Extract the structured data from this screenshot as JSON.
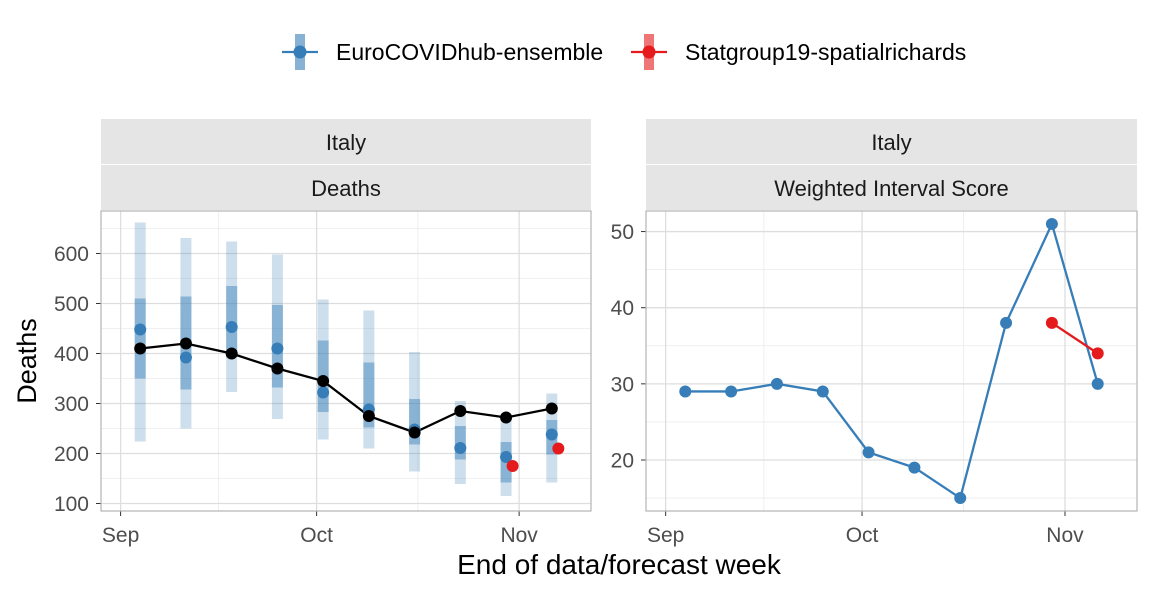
{
  "legend": {
    "items": [
      {
        "label": "EuroCOVIDhub-ensemble",
        "color": "#377EB8"
      },
      {
        "label": "Statgroup19-spatialrichards",
        "color": "#E41A1C"
      }
    ]
  },
  "xlabel": "End of data/forecast week",
  "chart_data": [
    {
      "type": "line",
      "strip_top": "Italy",
      "strip_bottom": "Deaths",
      "ylabel": "Deaths",
      "xlim": [
        "2021-08-29",
        "2021-11-12"
      ],
      "ylim": [
        85,
        685
      ],
      "x_ticks": [
        {
          "date": "2021-09-01",
          "label": "Sep"
        },
        {
          "date": "2021-10-01",
          "label": "Oct"
        },
        {
          "date": "2021-11-01",
          "label": "Nov"
        }
      ],
      "y_ticks": [
        100,
        200,
        300,
        400,
        500,
        600
      ],
      "grid": true,
      "observed": {
        "color": "#000000",
        "x": [
          "2021-09-04",
          "2021-09-11",
          "2021-09-18",
          "2021-09-25",
          "2021-10-02",
          "2021-10-09",
          "2021-10-16",
          "2021-10-23",
          "2021-10-30",
          "2021-11-06"
        ],
        "y": [
          410,
          420,
          400,
          370,
          345,
          275,
          242,
          285,
          272,
          290
        ]
      },
      "forecasts": [
        {
          "name": "EuroCOVIDhub-ensemble",
          "color": "#377EB8",
          "x": [
            "2021-09-04",
            "2021-09-11",
            "2021-09-18",
            "2021-09-25",
            "2021-10-02",
            "2021-10-09",
            "2021-10-16",
            "2021-10-23",
            "2021-10-30",
            "2021-11-06"
          ],
          "median": [
            448,
            392,
            453,
            410,
            322,
            288,
            248,
            211,
            193,
            238
          ],
          "inner_lower": [
            350,
            328,
            392,
            332,
            283,
            252,
            218,
            188,
            142,
            198
          ],
          "inner_upper": [
            510,
            514,
            535,
            497,
            426,
            382,
            309,
            255,
            223,
            267
          ],
          "outer_lower": [
            224,
            250,
            323,
            269,
            228,
            210,
            164,
            139,
            115,
            142
          ],
          "outer_upper": [
            662,
            631,
            624,
            598,
            508,
            486,
            403,
            305,
            270,
            320
          ]
        },
        {
          "name": "Statgroup19-spatialrichards",
          "color": "#E41A1C",
          "x": [
            "2021-10-31",
            "2021-11-07"
          ],
          "median": [
            175,
            210
          ]
        }
      ]
    },
    {
      "type": "line",
      "strip_top": "Italy",
      "strip_bottom": "Weighted Interval Score",
      "xlim": [
        "2021-08-29",
        "2021-11-12"
      ],
      "ylim": [
        13.3,
        52.7
      ],
      "x_ticks": [
        {
          "date": "2021-09-01",
          "label": "Sep"
        },
        {
          "date": "2021-10-01",
          "label": "Oct"
        },
        {
          "date": "2021-11-01",
          "label": "Nov"
        }
      ],
      "y_ticks": [
        20,
        30,
        40,
        50
      ],
      "grid": true,
      "series": [
        {
          "name": "EuroCOVIDhub-ensemble",
          "color": "#377EB8",
          "x": [
            "2021-09-04",
            "2021-09-11",
            "2021-09-18",
            "2021-09-25",
            "2021-10-02",
            "2021-10-09",
            "2021-10-16",
            "2021-10-23",
            "2021-10-30",
            "2021-11-06"
          ],
          "values": [
            29,
            29,
            30,
            29,
            21,
            19,
            15,
            38,
            51,
            30
          ]
        },
        {
          "name": "Statgroup19-spatialrichards",
          "color": "#E41A1C",
          "x": [
            "2021-10-30",
            "2021-11-06"
          ],
          "values": [
            38,
            34
          ]
        }
      ]
    }
  ]
}
